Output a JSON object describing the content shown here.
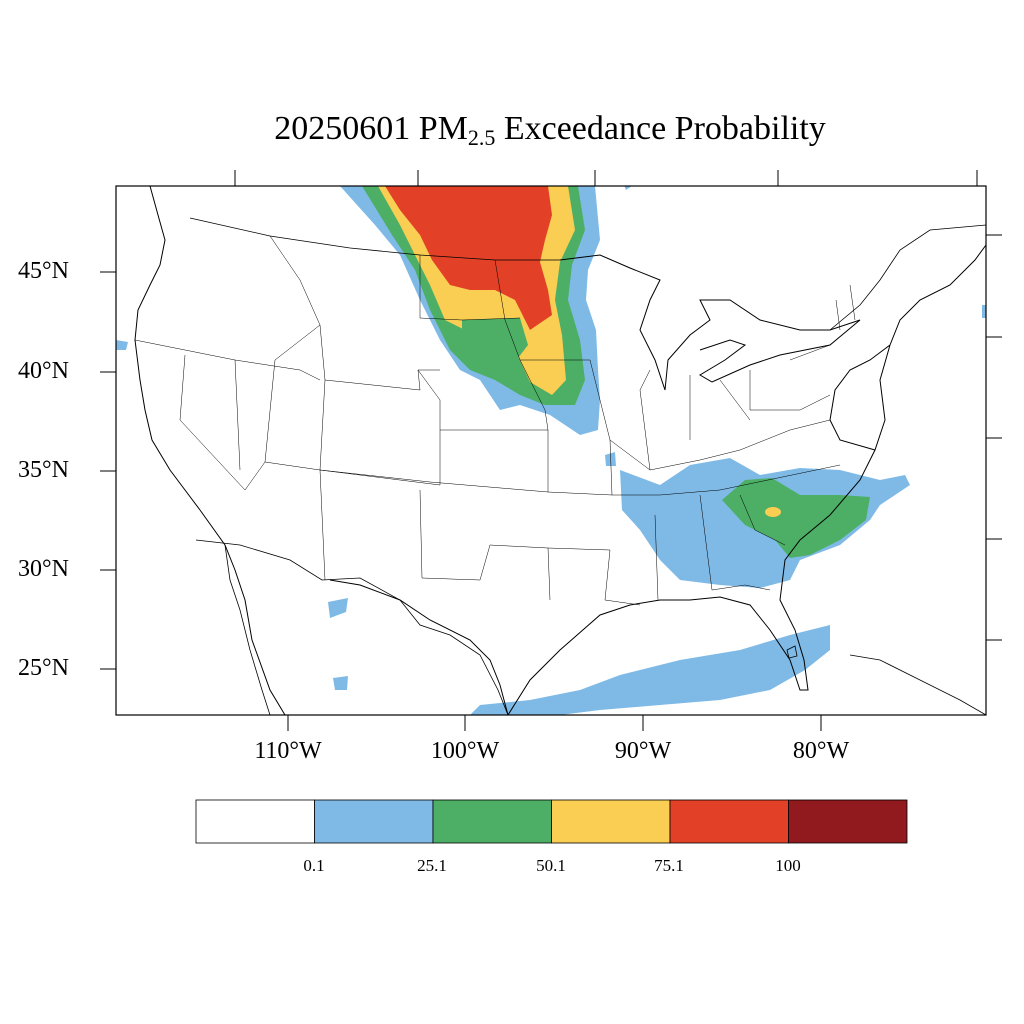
{
  "title": {
    "prefix": "20250601 PM",
    "subscript": "2.5",
    "suffix": " Exceedance Probability"
  },
  "lat_labels": [
    "45°N",
    "40°N",
    "35°N",
    "30°N",
    "25°N"
  ],
  "lon_labels": [
    "110°W",
    "100°W",
    "90°W",
    "80°W"
  ],
  "colorbar": {
    "labels": [
      "0.1",
      "25.1",
      "50.1",
      "75.1",
      "100"
    ],
    "colors": [
      "#ffffff",
      "#7fbae6",
      "#4caf65",
      "#f9ce52",
      "#e24128",
      "#911a1e"
    ]
  }
}
